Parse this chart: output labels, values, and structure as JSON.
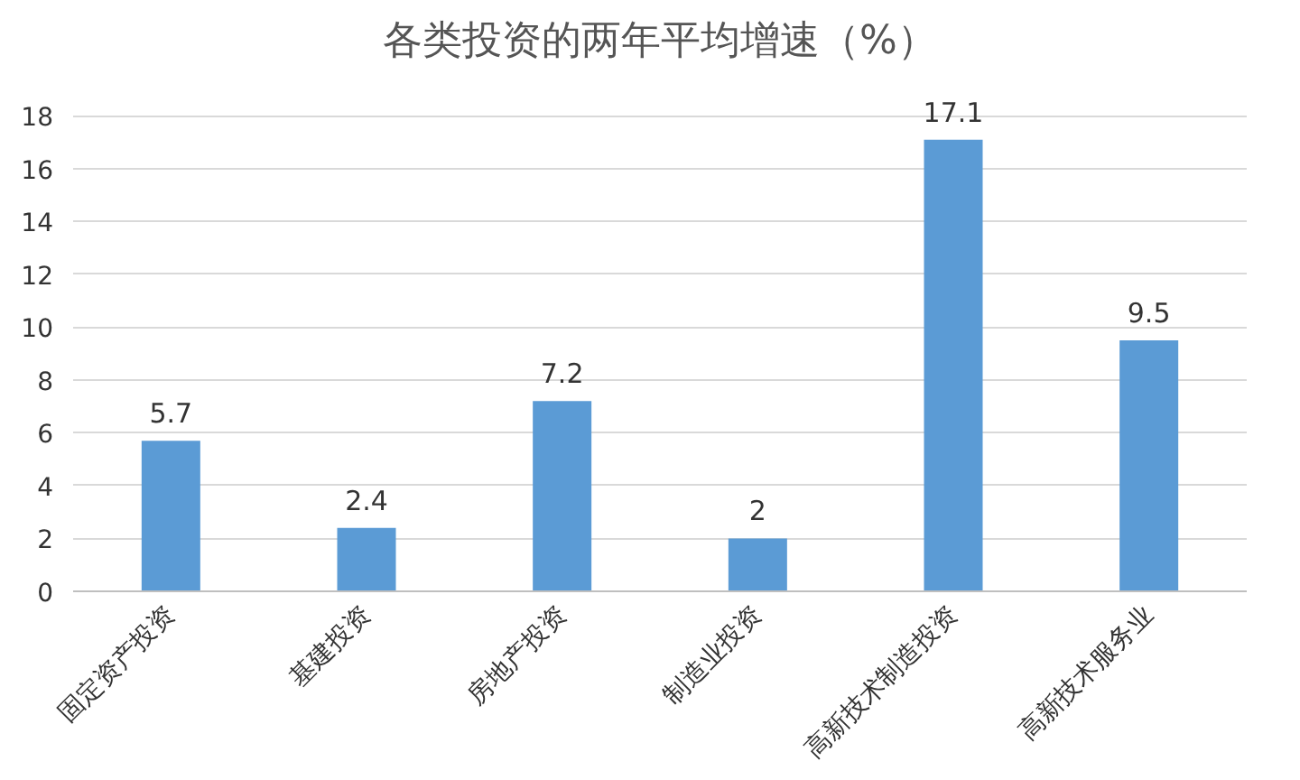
{
  "chart_data": {
    "type": "bar",
    "title": "各类投资的两年平均增速（%）",
    "categories": [
      "固定资产投资",
      "基建投资",
      "房地产投资",
      "制造业投资",
      "高新技术制造投资",
      "高新技术服务业"
    ],
    "values": [
      5.7,
      2.4,
      7.2,
      2,
      17.1,
      9.5
    ],
    "color": "#5b9bd5",
    "ylim": [
      0,
      18
    ],
    "yticks": [
      0,
      2,
      4,
      6,
      8,
      10,
      12,
      14,
      16,
      18
    ],
    "grid": "y",
    "data_labels": true
  }
}
